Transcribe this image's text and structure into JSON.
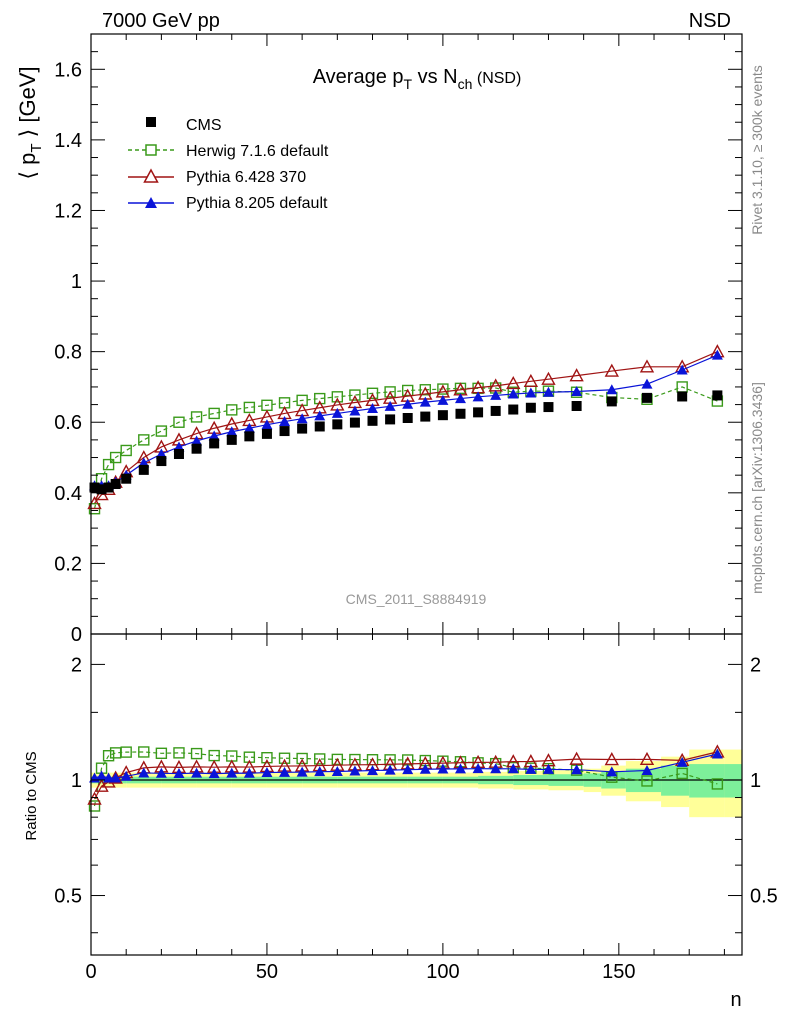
{
  "header": {
    "left": "7000 GeV pp",
    "right": "NSD"
  },
  "side_labels": {
    "rivet": "Rivet 3.1.10, ≥ 300k events",
    "source": "mcplots.cern.ch [arXiv:1306.3436]"
  },
  "watermark": "CMS_2011_S8884919",
  "colors": {
    "data": "#000000",
    "herwig": "#3a9a1a",
    "pythia6": "#a01414",
    "pythia8": "#0a14d8",
    "band_inner": "#7df09a",
    "band_outer": "#ffff99"
  },
  "chart_data": [
    {
      "type": "scatter",
      "name": "main",
      "title_parts": {
        "main": "Average p",
        "sub1": "T",
        "mid": " vs N",
        "sub2": "ch",
        "tail": " (NSD)"
      },
      "ylabel_parts": {
        "open": "⟨ p",
        "sub": "T",
        "close": " ⟩ [GeV]"
      },
      "xlim": [
        0,
        185
      ],
      "ylim": [
        0,
        1.7
      ],
      "yticks": [
        0,
        0.2,
        0.4,
        0.6,
        0.8,
        1,
        1.2,
        1.4,
        1.6
      ],
      "ytick_labels": [
        "0",
        "0.2",
        "0.4",
        "0.6",
        "0.8",
        "1",
        "1.2",
        "1.4",
        "1.6"
      ],
      "legend": [
        {
          "key": "data",
          "label": "CMS",
          "marker": "filled-square",
          "line": "none"
        },
        {
          "key": "herwig",
          "label": "Herwig 7.1.6 default",
          "marker": "open-square",
          "line": "dashed"
        },
        {
          "key": "pythia6",
          "label": "Pythia 6.428 370",
          "marker": "open-triangle",
          "line": "solid"
        },
        {
          "key": "pythia8",
          "label": "Pythia 8.205 default",
          "marker": "filled-triangle",
          "line": "solid"
        }
      ],
      "series": {
        "data": {
          "x": [
            1,
            3,
            5,
            7,
            10,
            15,
            20,
            25,
            30,
            35,
            40,
            45,
            50,
            55,
            60,
            65,
            70,
            75,
            80,
            85,
            90,
            95,
            100,
            105,
            110,
            115,
            120,
            125,
            130,
            138,
            148,
            158,
            168,
            178
          ],
          "y": [
            0.415,
            0.41,
            0.415,
            0.425,
            0.44,
            0.465,
            0.49,
            0.51,
            0.525,
            0.54,
            0.55,
            0.56,
            0.567,
            0.575,
            0.582,
            0.588,
            0.594,
            0.599,
            0.604,
            0.608,
            0.612,
            0.616,
            0.62,
            0.624,
            0.628,
            0.632,
            0.636,
            0.641,
            0.643,
            0.646,
            0.659,
            0.669,
            0.673,
            0.676
          ]
        },
        "herwig": {
          "x": [
            1,
            3,
            5,
            7,
            10,
            15,
            20,
            25,
            30,
            35,
            40,
            45,
            50,
            55,
            60,
            65,
            70,
            75,
            80,
            85,
            90,
            95,
            100,
            105,
            110,
            115,
            120,
            125,
            130,
            138,
            148,
            158,
            168,
            178
          ],
          "y": [
            0.355,
            0.44,
            0.48,
            0.5,
            0.52,
            0.55,
            0.575,
            0.6,
            0.615,
            0.625,
            0.635,
            0.642,
            0.648,
            0.655,
            0.662,
            0.667,
            0.672,
            0.677,
            0.682,
            0.686,
            0.69,
            0.692,
            0.694,
            0.696,
            0.696,
            0.697,
            0.685,
            0.688,
            0.688,
            0.685,
            0.67,
            0.665,
            0.7,
            0.66
          ]
        },
        "pythia6": {
          "x": [
            1,
            3,
            5,
            7,
            10,
            15,
            20,
            25,
            30,
            35,
            40,
            45,
            50,
            55,
            60,
            65,
            70,
            75,
            80,
            85,
            90,
            95,
            100,
            105,
            110,
            115,
            120,
            125,
            130,
            138,
            148,
            158,
            168,
            178
          ],
          "y": [
            0.37,
            0.395,
            0.41,
            0.43,
            0.46,
            0.5,
            0.53,
            0.55,
            0.568,
            0.583,
            0.595,
            0.605,
            0.615,
            0.625,
            0.633,
            0.641,
            0.649,
            0.656,
            0.662,
            0.668,
            0.674,
            0.68,
            0.686,
            0.692,
            0.698,
            0.703,
            0.71,
            0.716,
            0.722,
            0.732,
            0.745,
            0.757,
            0.757,
            0.8
          ]
        },
        "pythia8": {
          "x": [
            1,
            3,
            5,
            7,
            10,
            15,
            20,
            25,
            30,
            35,
            40,
            45,
            50,
            55,
            60,
            65,
            70,
            75,
            80,
            85,
            90,
            95,
            100,
            105,
            110,
            115,
            120,
            125,
            130,
            138,
            148,
            158,
            168,
            178
          ],
          "y": [
            0.42,
            0.42,
            0.42,
            0.43,
            0.45,
            0.485,
            0.51,
            0.53,
            0.547,
            0.561,
            0.573,
            0.583,
            0.593,
            0.602,
            0.61,
            0.618,
            0.625,
            0.632,
            0.639,
            0.645,
            0.651,
            0.657,
            0.662,
            0.667,
            0.672,
            0.676,
            0.68,
            0.683,
            0.685,
            0.687,
            0.692,
            0.708,
            0.748,
            0.79
          ]
        }
      }
    },
    {
      "type": "scatter",
      "name": "ratio",
      "ylabel": "Ratio to CMS",
      "xlabel": "n",
      "xlim": [
        0,
        185
      ],
      "ylim": [
        0.35,
        2.4
      ],
      "yscale": "log",
      "xticks": [
        0,
        50,
        100,
        150
      ],
      "xtick_labels": [
        "0",
        "50",
        "100",
        "150"
      ],
      "ytick_labels": [
        {
          "value": 0.5,
          "label": "0.5"
        },
        {
          "value": 1,
          "label": "1"
        },
        {
          "value": 2,
          "label": "2"
        }
      ],
      "band": {
        "x": [
          0,
          10,
          20,
          30,
          40,
          50,
          60,
          70,
          80,
          90,
          100,
          110,
          120,
          130,
          140,
          145,
          152,
          162,
          170,
          180,
          185
        ],
        "inner_half": [
          0.02,
          0.02,
          0.02,
          0.02,
          0.02,
          0.02,
          0.02,
          0.02,
          0.02,
          0.02,
          0.02,
          0.025,
          0.03,
          0.035,
          0.04,
          0.05,
          0.07,
          0.09,
          0.1,
          0.1
        ],
        "outer_half": [
          0.045,
          0.045,
          0.045,
          0.045,
          0.045,
          0.045,
          0.045,
          0.045,
          0.045,
          0.045,
          0.045,
          0.05,
          0.055,
          0.06,
          0.07,
          0.09,
          0.12,
          0.15,
          0.2,
          0.2
        ]
      }
    }
  ]
}
